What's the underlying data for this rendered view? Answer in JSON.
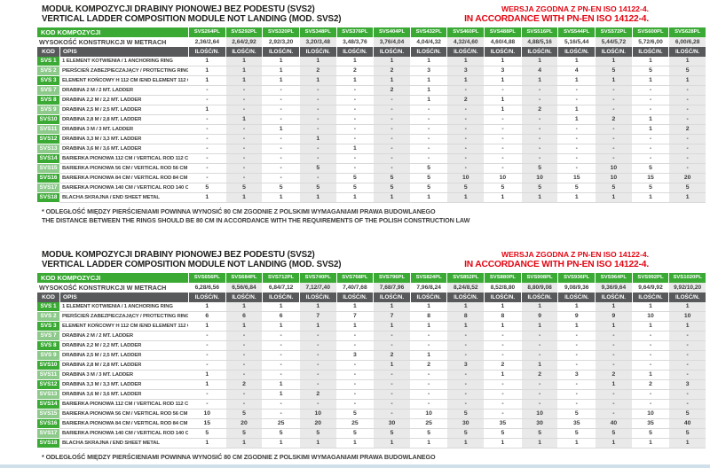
{
  "titles": {
    "pl": "MODUŁ KOMPOZYCJI DRABINY PIONOWEJ BEZ PODESTU (SVS2)",
    "en": "VERTICAL LADDER COMPOSITION MODULE NOT LANDING (MOD. SVS2)"
  },
  "notes": {
    "pl": "WERSJA ZGODNA Z PN-EN ISO 14122-4.",
    "en": "IN ACCORDANCE WITH PN-EN ISO 14122-4."
  },
  "labels": {
    "kod_kompozycji": "KOD KOMPOZYCJI",
    "height": "WYSOKOŚĆ KONSTRUKCJI W METRACH",
    "kod": "KOD",
    "opis": "OPIS",
    "qty": "ILOŚĆ/N."
  },
  "footnotes": {
    "pl": "* ODLEGŁOŚĆ MIĘDZY PIERŚCIENIAMI POWINNA WYNOSIĆ 80 CM ZGODNIE Z POLSKIMI WYMAGANIAMI PRAWA BUDOWLANEGO",
    "en": "THE DISTANCE BETWEEN THE RINGS SHOULD BE 80 CM IN ACCORDANCE WITH THE REQUIREMENTS OF THE POLISH CONSTRUCTION LAW"
  },
  "colors": {
    "green_dark": "#3aaa35",
    "green_light": "#8dc98b",
    "grey_dark": "#58595b",
    "red": "#e30613",
    "stripe": "#e9e9e9"
  },
  "row_defs": [
    {
      "kod": "SVS 1",
      "opis": "1 ELEMENT KOTWIENIA / 1 ANCHORING RING"
    },
    {
      "kod": "SVS 2",
      "opis": "PIERŚCIEŃ ZABEZPIECZAJĄCY / PROTECTING RING"
    },
    {
      "kod": "SVS 3",
      "opis": "ELEMENT KOŃCOWY H 112 CM /END ELEMENT 112 CM"
    },
    {
      "kod": "SVS 7",
      "opis": "DRABINA 2 M / 2 MT. LADDER"
    },
    {
      "kod": "SVS 8",
      "opis": "DRABINA 2,2 M / 2,2 MT. LADDER"
    },
    {
      "kod": "SVS 9",
      "opis": "DRABINA 2,5 M / 2,5 MT. LADDER"
    },
    {
      "kod": "SVS10",
      "opis": "DRABINA 2,8 M / 2,8 MT. LADDER"
    },
    {
      "kod": "SVS11",
      "opis": "DRABINA 3 M / 3 MT. LADDER"
    },
    {
      "kod": "SVS12",
      "opis": "DRABINA 3,3 M / 3,3 MT. LADDER"
    },
    {
      "kod": "SVS13",
      "opis": "DRABINA 3,6 M / 3,6 MT. LADDER"
    },
    {
      "kod": "SVS14",
      "opis": "BARIERKA PIONOWA 112 CM / VERTICAL ROD 112 CM"
    },
    {
      "kod": "SVS15",
      "opis": "BARIERKA PIONOWA 56 CM / VERTICAL ROD 56 CM"
    },
    {
      "kod": "SVS16",
      "opis": "BARIERKA PIONOWA 84 CM / VERTICAL ROD 84 CM"
    },
    {
      "kod": "SVS17",
      "opis": "BARIERKA PIONOWA 140 CM / VERTICAL ROD 140 CM"
    },
    {
      "kod": "SVS18",
      "opis": "BLACHA SKRAJNA / END SHEET METAL"
    }
  ],
  "tables": [
    {
      "codes": [
        "SVS264PL",
        "SVS292PL",
        "SVS320PL",
        "SVS348PL",
        "SVS376PL",
        "SVS404PL",
        "SVS432PL",
        "SVS460PL",
        "SVS488PL",
        "SVS516PL",
        "SVS544PL",
        "SVS572PL",
        "SVS600PL",
        "SVS628PL"
      ],
      "heights": [
        "2,36/2,64",
        "2,64/2,92",
        "2,92/3,20",
        "3,20/3,48",
        "3,48/3,76",
        "3,76/4,04",
        "4,04/4,32",
        "4,32/4,60",
        "4,60/4,88",
        "4,88/5,16",
        "5,16/5,44",
        "5,44/5,72",
        "5,72/6,00",
        "6,00/6,28"
      ],
      "values": [
        [
          "1",
          "1",
          "1",
          "1",
          "1",
          "1",
          "1",
          "1",
          "1",
          "1",
          "1",
          "1",
          "1",
          "1"
        ],
        [
          "1",
          "1",
          "1",
          "2",
          "2",
          "2",
          "3",
          "3",
          "3",
          "4",
          "4",
          "5",
          "5",
          "5"
        ],
        [
          "1",
          "1",
          "1",
          "1",
          "1",
          "1",
          "1",
          "1",
          "1",
          "1",
          "1",
          "1",
          "1",
          "1"
        ],
        [
          "-",
          "-",
          "-",
          "-",
          "-",
          "2",
          "1",
          "-",
          "-",
          "-",
          "-",
          "-",
          "-",
          "-"
        ],
        [
          "-",
          "-",
          "-",
          "-",
          "-",
          "-",
          "1",
          "2",
          "1",
          "-",
          "-",
          "-",
          "-",
          "-"
        ],
        [
          "1",
          "-",
          "-",
          "-",
          "-",
          "-",
          "-",
          "-",
          "1",
          "2",
          "1",
          "-",
          "-",
          "-"
        ],
        [
          "-",
          "1",
          "-",
          "-",
          "-",
          "-",
          "-",
          "-",
          "-",
          "-",
          "1",
          "2",
          "1",
          "-"
        ],
        [
          "-",
          "-",
          "1",
          "-",
          "-",
          "-",
          "-",
          "-",
          "-",
          "-",
          "-",
          "-",
          "1",
          "2"
        ],
        [
          "-",
          "-",
          "-",
          "1",
          "-",
          "-",
          "-",
          "-",
          "-",
          "-",
          "-",
          "-",
          "-",
          "-"
        ],
        [
          "-",
          "-",
          "-",
          "-",
          "1",
          "-",
          "-",
          "-",
          "-",
          "-",
          "-",
          "-",
          "-",
          "-"
        ],
        [
          "-",
          "-",
          "-",
          "-",
          "-",
          "-",
          "-",
          "-",
          "-",
          "-",
          "-",
          "-",
          "-",
          "-"
        ],
        [
          "-",
          "-",
          "-",
          "5",
          "-",
          "-",
          "5",
          "-",
          "-",
          "5",
          "-",
          "10",
          "5",
          "-"
        ],
        [
          "-",
          "-",
          "-",
          "-",
          "5",
          "5",
          "5",
          "10",
          "10",
          "10",
          "15",
          "10",
          "15",
          "20"
        ],
        [
          "5",
          "5",
          "5",
          "5",
          "5",
          "5",
          "5",
          "5",
          "5",
          "5",
          "5",
          "5",
          "5",
          "5"
        ],
        [
          "1",
          "1",
          "1",
          "1",
          "1",
          "1",
          "1",
          "1",
          "1",
          "1",
          "1",
          "1",
          "1",
          "1"
        ]
      ],
      "show_footnote_en": true
    },
    {
      "codes": [
        "SVS656PL",
        "SVS684PL",
        "SVS712PL",
        "SVS740PL",
        "SVS768PL",
        "SVS796PL",
        "SVS824PL",
        "SVS852PL",
        "SVS880PL",
        "SVS908PL",
        "SVS936PL",
        "SVS964PL",
        "SVS992PL",
        "SVS1020PL"
      ],
      "heights": [
        "6,28/6,56",
        "6,56/6,84",
        "6,84/7,12",
        "7,12/7,40",
        "7,40/7,68",
        "7,68/7,96",
        "7,96/8,24",
        "8,24/8,52",
        "8,52/8,80",
        "8,80/9,08",
        "9,08/9,36",
        "9,36/9,64",
        "9,64/9,92",
        "9,92/10,20"
      ],
      "values": [
        [
          "1",
          "1",
          "1",
          "1",
          "1",
          "1",
          "1",
          "1",
          "1",
          "1",
          "1",
          "1",
          "1",
          "1"
        ],
        [
          "6",
          "6",
          "6",
          "7",
          "7",
          "7",
          "8",
          "8",
          "8",
          "9",
          "9",
          "9",
          "10",
          "10"
        ],
        [
          "1",
          "1",
          "1",
          "1",
          "1",
          "1",
          "1",
          "1",
          "1",
          "1",
          "1",
          "1",
          "1",
          "1"
        ],
        [
          "-",
          "-",
          "-",
          "-",
          "-",
          "-",
          "-",
          "-",
          "-",
          "-",
          "-",
          "-",
          "-",
          "-"
        ],
        [
          "-",
          "-",
          "-",
          "-",
          "-",
          "-",
          "-",
          "-",
          "-",
          "-",
          "-",
          "-",
          "-",
          "-"
        ],
        [
          "-",
          "-",
          "-",
          "-",
          "3",
          "2",
          "1",
          "-",
          "-",
          "-",
          "-",
          "-",
          "-",
          "-"
        ],
        [
          "-",
          "-",
          "-",
          "-",
          "-",
          "1",
          "2",
          "3",
          "2",
          "1",
          "-",
          "-",
          "-",
          "-"
        ],
        [
          "1",
          "-",
          "-",
          "-",
          "-",
          "-",
          "-",
          "-",
          "1",
          "2",
          "3",
          "2",
          "1",
          "-"
        ],
        [
          "1",
          "2",
          "1",
          "-",
          "-",
          "-",
          "-",
          "-",
          "-",
          "-",
          "-",
          "1",
          "2",
          "3"
        ],
        [
          "-",
          "-",
          "1",
          "2",
          "-",
          "-",
          "-",
          "-",
          "-",
          "-",
          "-",
          "-",
          "-",
          "-"
        ],
        [
          "-",
          "-",
          "-",
          "-",
          "-",
          "-",
          "-",
          "-",
          "-",
          "-",
          "-",
          "-",
          "-",
          "-"
        ],
        [
          "10",
          "5",
          "-",
          "10",
          "5",
          "-",
          "10",
          "5",
          "-",
          "10",
          "5",
          "-",
          "10",
          "5"
        ],
        [
          "15",
          "20",
          "25",
          "20",
          "25",
          "30",
          "25",
          "30",
          "35",
          "30",
          "35",
          "40",
          "35",
          "40"
        ],
        [
          "5",
          "5",
          "5",
          "5",
          "5",
          "5",
          "5",
          "5",
          "5",
          "5",
          "5",
          "5",
          "5",
          "5"
        ],
        [
          "1",
          "1",
          "1",
          "1",
          "1",
          "1",
          "1",
          "1",
          "1",
          "1",
          "1",
          "1",
          "1",
          "1"
        ]
      ],
      "show_footnote_en": false
    }
  ]
}
